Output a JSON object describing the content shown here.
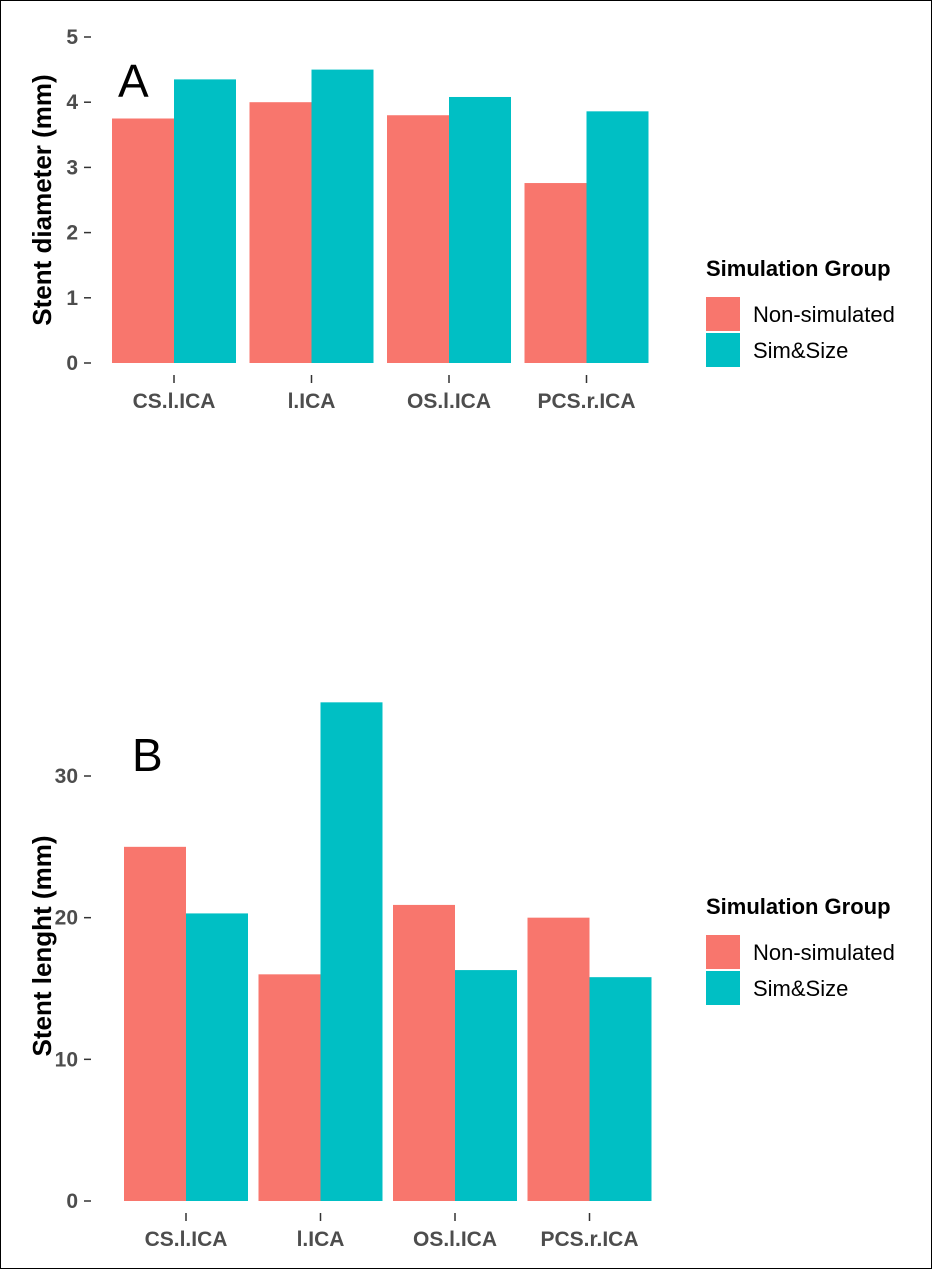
{
  "chart_data": [
    {
      "type": "bar",
      "panel_label": "A",
      "categories": [
        "CS.l.ICA",
        "l.ICA",
        "OS.l.ICA",
        "PCS.r.ICA"
      ],
      "series": [
        {
          "name": "Non-simulated",
          "color": "#F8766D",
          "values": [
            3.75,
            4.0,
            3.8,
            2.76
          ]
        },
        {
          "name": "Sim&Size",
          "color": "#00BFC4",
          "values": [
            4.35,
            4.5,
            4.08,
            3.86
          ]
        }
      ],
      "ylabel": "Stent diameter (mm)",
      "ylim": [
        0,
        5
      ],
      "yticks": [
        0,
        1,
        2,
        3,
        4,
        5
      ],
      "ytick_labels": [
        "0",
        "1",
        "2",
        "3",
        "4",
        "5"
      ],
      "legend": {
        "title": "Simulation Group",
        "position": "right"
      },
      "grid": false
    },
    {
      "type": "bar",
      "panel_label": "B",
      "categories": [
        "CS.l.ICA",
        "l.ICA",
        "OS.l.ICA",
        "PCS.r.ICA"
      ],
      "series": [
        {
          "name": "Non-simulated",
          "color": "#F8766D",
          "values": [
            25.0,
            16.0,
            20.9,
            20.0
          ]
        },
        {
          "name": "Sim&Size",
          "color": "#00BFC4",
          "values": [
            20.3,
            35.2,
            16.3,
            15.8
          ]
        }
      ],
      "ylabel": "Stent lenght (mm)",
      "ylim": [
        0,
        36
      ],
      "yticks": [
        0,
        10,
        20,
        30
      ],
      "ytick_labels": [
        "0",
        "10",
        "20",
        "30"
      ],
      "legend": {
        "title": "Simulation Group",
        "position": "right"
      },
      "grid": false
    }
  ]
}
